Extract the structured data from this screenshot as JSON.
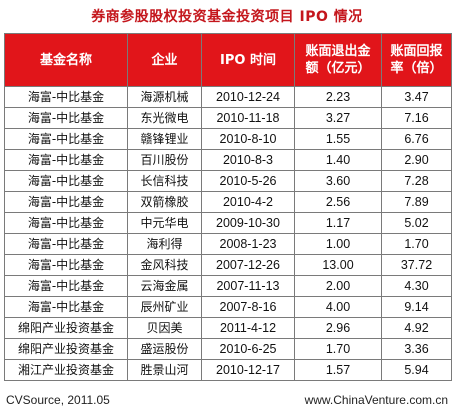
{
  "title": "券商参股股权投资基金投资项目 IPO 情况",
  "table": {
    "headers": [
      "基金名称",
      "企业",
      "IPO 时间",
      "账面退出金额（亿元）",
      "账面回报率（倍）"
    ],
    "rows": [
      [
        "海富-中比基金",
        "海源机械",
        "2010-12-24",
        "2.23",
        "3.47"
      ],
      [
        "海富-中比基金",
        "东光微电",
        "2010-11-18",
        "3.27",
        "7.16"
      ],
      [
        "海富-中比基金",
        "赣锋锂业",
        "2010-8-10",
        "1.55",
        "6.76"
      ],
      [
        "海富-中比基金",
        "百川股份",
        "2010-8-3",
        "1.40",
        "2.90"
      ],
      [
        "海富-中比基金",
        "长信科技",
        "2010-5-26",
        "3.60",
        "7.28"
      ],
      [
        "海富-中比基金",
        "双箭橡胶",
        "2010-4-2",
        "2.56",
        "7.89"
      ],
      [
        "海富-中比基金",
        "中元华电",
        "2009-10-30",
        "1.17",
        "5.02"
      ],
      [
        "海富-中比基金",
        "海利得",
        "2008-1-23",
        "1.00",
        "1.70"
      ],
      [
        "海富-中比基金",
        "金风科技",
        "2007-12-26",
        "13.00",
        "37.72"
      ],
      [
        "海富-中比基金",
        "云海金属",
        "2007-11-13",
        "2.00",
        "4.30"
      ],
      [
        "海富-中比基金",
        "辰州矿业",
        "2007-8-16",
        "4.00",
        "9.14"
      ],
      [
        "绵阳产业投资基金",
        "贝因美",
        "2011-4-12",
        "2.96",
        "4.92"
      ],
      [
        "绵阳产业投资基金",
        "盛运股份",
        "2010-6-25",
        "1.70",
        "3.36"
      ],
      [
        "湘江产业投资基金",
        "胜景山河",
        "2010-12-17",
        "1.57",
        "5.94"
      ]
    ]
  },
  "footer": {
    "source": "CVSource, 2011.05",
    "website": "www.ChinaVenture.com.cn"
  }
}
